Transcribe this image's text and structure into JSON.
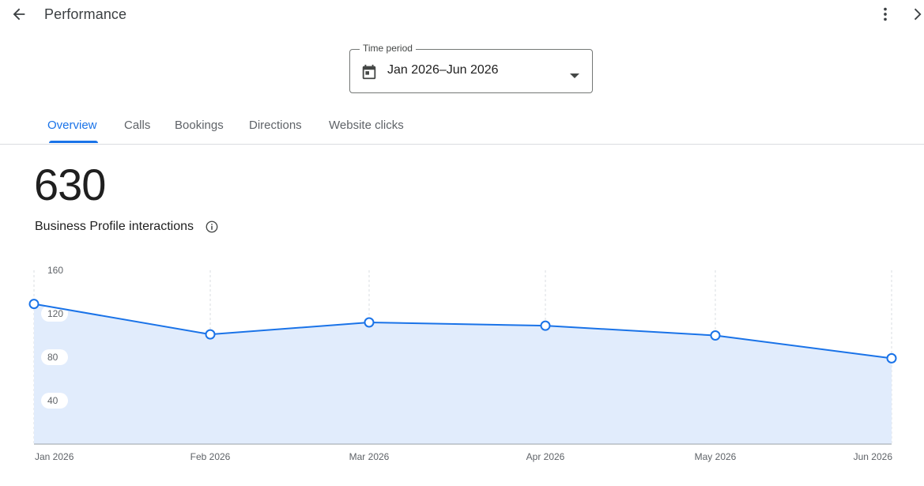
{
  "header": {
    "title": "Performance",
    "back_icon": "arrow-back-icon",
    "more_icon": "more-vert-icon",
    "close_icon": "chevron-right-icon"
  },
  "time_period": {
    "label": "Time period",
    "value": "Jan 2026–Jun 2026",
    "icon": "calendar-icon"
  },
  "tabs": [
    {
      "label": "Overview",
      "active": true
    },
    {
      "label": "Calls",
      "active": false
    },
    {
      "label": "Bookings",
      "active": false
    },
    {
      "label": "Directions",
      "active": false
    },
    {
      "label": "Website clicks",
      "active": false
    }
  ],
  "summary": {
    "value": "630",
    "label": "Business Profile interactions"
  },
  "colors": {
    "accent": "#1a73e8",
    "area_fill": "#e1ecfc"
  },
  "chart_data": {
    "type": "area",
    "categories": [
      "Jan 2026",
      "Feb 2026",
      "Mar 2026",
      "Apr 2026",
      "May 2026",
      "Jun 2026"
    ],
    "values": [
      129,
      101,
      112,
      109,
      100,
      79
    ],
    "yticks": [
      40,
      80,
      120,
      160
    ],
    "ylim": [
      0,
      160
    ],
    "grid": "vertical dashed",
    "title": "",
    "xlabel": "",
    "ylabel": ""
  }
}
